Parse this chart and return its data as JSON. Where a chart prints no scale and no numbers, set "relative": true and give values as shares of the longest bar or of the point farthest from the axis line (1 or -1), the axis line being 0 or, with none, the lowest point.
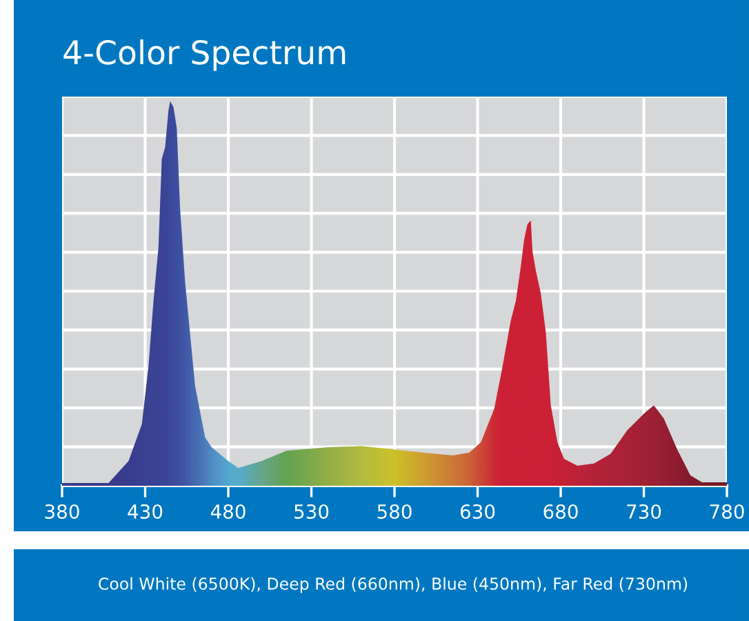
{
  "chart_data": {
    "type": "area",
    "title": "4-Color Spectrum",
    "relative": true,
    "x": [
      380,
      408,
      420,
      428,
      432,
      435,
      438,
      440,
      442,
      444,
      445,
      447,
      449,
      451,
      454,
      460,
      466,
      470,
      480,
      486,
      500,
      515,
      540,
      560,
      580,
      600,
      615,
      625,
      632,
      640,
      645,
      650,
      653,
      656,
      658,
      660,
      662,
      663,
      665,
      668,
      671,
      674,
      678,
      682,
      690,
      700,
      710,
      720,
      730,
      736,
      742,
      750,
      758,
      765,
      780
    ],
    "values": [
      0.007,
      0.007,
      0.064,
      0.16,
      0.31,
      0.48,
      0.62,
      0.85,
      0.88,
      0.975,
      1.0,
      0.985,
      0.93,
      0.72,
      0.53,
      0.26,
      0.126,
      0.1,
      0.064,
      0.046,
      0.064,
      0.091,
      0.1,
      0.103,
      0.094,
      0.085,
      0.079,
      0.086,
      0.113,
      0.2,
      0.31,
      0.43,
      0.48,
      0.57,
      0.64,
      0.68,
      0.69,
      0.61,
      0.56,
      0.5,
      0.4,
      0.21,
      0.113,
      0.07,
      0.052,
      0.058,
      0.083,
      0.144,
      0.187,
      0.209,
      0.175,
      0.095,
      0.027,
      0.009,
      0.009
    ],
    "colors": [
      "#3a3a8c",
      "#3a3a8c",
      "#3a3f90",
      "#3b4494",
      "#3b4596",
      "#3b4697",
      "#3c4798",
      "#3c489a",
      "#3d4a9c",
      "#3d4c9e",
      "#3e4ea0",
      "#3f52a3",
      "#4056a6",
      "#415aa8",
      "#4463ae",
      "#4a78ba",
      "#5290c8",
      "#56a2d2",
      "#5bc4e0",
      "#60c6d8",
      "#70be8a",
      "#6dbb45",
      "#a8c93a",
      "#cfd930",
      "#eee014",
      "#eeb020",
      "#ec8a25",
      "#ec6e25",
      "#ee4f25",
      "#ec2a25",
      "#ed1c24",
      "#ed1c24",
      "#ed1c24",
      "#ed1c24",
      "#ed1c24",
      "#ed1c24",
      "#ed1c24",
      "#ed1c24",
      "#ed1c24",
      "#ed1c24",
      "#ed1c24",
      "#ed1c24",
      "#e81d25",
      "#e41d25",
      "#dc1e26",
      "#d21f27",
      "#ca1e26",
      "#c41e25",
      "#ba1c23",
      "#b51b22",
      "#ad1a20",
      "#a5171d",
      "#96151a",
      "#8c1414",
      "#7e1212"
    ],
    "xlim": [
      380,
      780
    ],
    "xticks": [
      380,
      430,
      480,
      530,
      580,
      630,
      680,
      730,
      780
    ],
    "grid": true,
    "annotations": [
      "Cool White (6500K), Deep Red (660nm), Blue (450nm), Far Red (730nm)"
    ]
  }
}
